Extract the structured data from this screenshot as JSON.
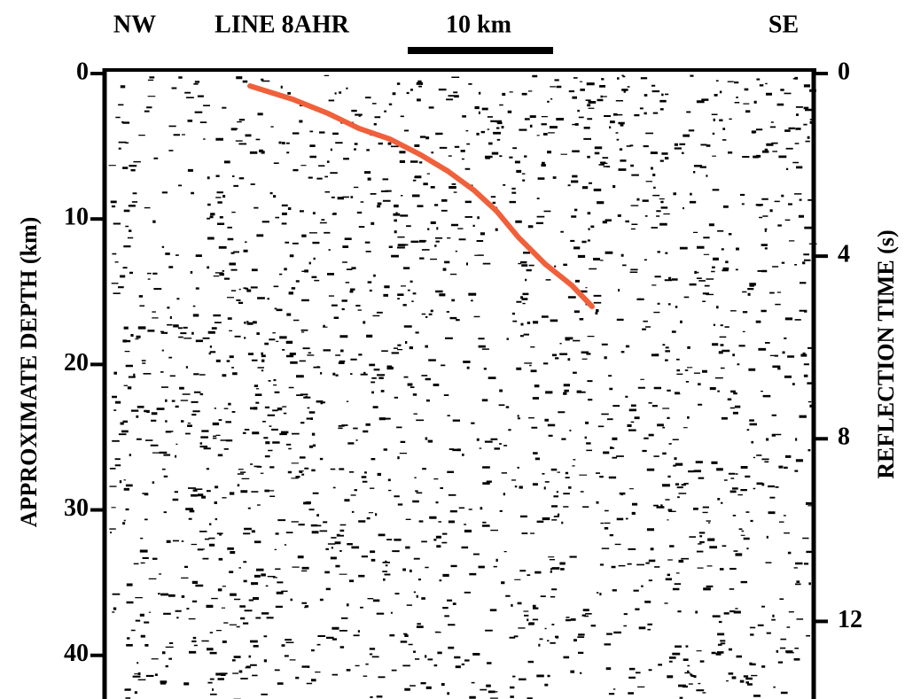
{
  "header": {
    "left": "NW",
    "line": "LINE 8AHR",
    "scale": "10 km",
    "right": "SE"
  },
  "left_axis": {
    "label": "APPROXIMATE DEPTH (km)",
    "lim": [
      0,
      43
    ],
    "ticks": [
      0,
      10,
      20,
      30,
      40
    ]
  },
  "right_axis": {
    "label": "REFLECTION TIME (s)",
    "lim": [
      0,
      13.7
    ],
    "ticks": [
      0,
      4,
      8,
      12
    ]
  }
}
